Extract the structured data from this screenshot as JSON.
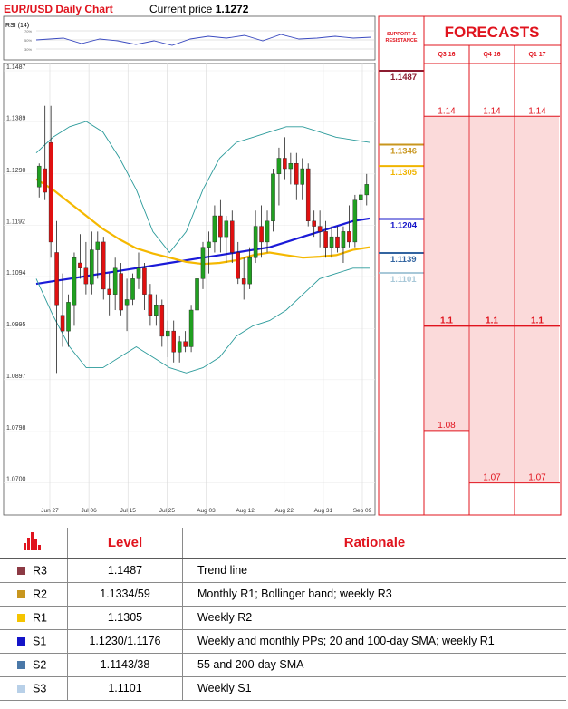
{
  "header": {
    "title": "EUR/USD Daily Chart",
    "price_label": "Current price",
    "price_value": "1.1272"
  },
  "rsi_label": "RSI (14)",
  "rsi_ticks": [
    "70%",
    "50%",
    "30%"
  ],
  "sr_heading": [
    "SUPPORT &",
    "RESISTANCE"
  ],
  "forecasts": {
    "title": "FORECASTS",
    "columns": [
      {
        "label": "Q3 16",
        "values": [
          1.14,
          1.1,
          1.08
        ]
      },
      {
        "label": "Q4 16",
        "values": [
          1.14,
          1.1,
          1.07
        ]
      },
      {
        "label": "Q1 17",
        "values": [
          1.14,
          1.1,
          1.07
        ]
      }
    ],
    "value_labels": {
      "q3_high": "1.14",
      "q4_high": "1.14",
      "q1_high": "1.14",
      "q3_mid": "1.1",
      "q4_mid": "1.1",
      "q1_mid": "1.1",
      "q3_low": "1.08",
      "q4_low": "1.07",
      "q1_low": "1.07"
    }
  },
  "levels": [
    {
      "value": 1.1487,
      "label": "1.1487",
      "color": "#8c1c30"
    },
    {
      "value": 1.1346,
      "label": "1.1346",
      "color": "#c8961e"
    },
    {
      "value": 1.1305,
      "label": "1.1305",
      "color": "#f0b400"
    },
    {
      "value": 1.1204,
      "label": "1.1204",
      "color": "#1414c8"
    },
    {
      "value": 1.1139,
      "label": "1.1139",
      "color": "#3264a0"
    },
    {
      "value": 1.1101,
      "label": "1.1101",
      "color": "#a8c8d8"
    }
  ],
  "chart_data": {
    "type": "candlestick",
    "title": "EUR/USD Daily Chart",
    "ylim": [
      1.067,
      1.1487
    ],
    "y_ticks": [
      "1.1487",
      "1.1389",
      "1.1290",
      "1.1192",
      "1.1094",
      "1.0995",
      "1.0897",
      "1.0798",
      "1.0700"
    ],
    "x_ticks": [
      "Jun 27",
      "Jul 06",
      "Jul 15",
      "Jul 25",
      "Aug 03",
      "Aug 12",
      "Aug 22",
      "Aug 31",
      "Sep 09"
    ],
    "candles": [
      [
        1.1265,
        1.131,
        1.1245,
        1.1305
      ],
      [
        1.13,
        1.142,
        1.124,
        1.1255
      ],
      [
        1.135,
        1.142,
        1.113,
        1.116
      ],
      [
        1.114,
        1.12,
        1.091,
        1.104
      ],
      [
        1.102,
        1.11,
        1.096,
        1.099
      ],
      [
        1.099,
        1.106,
        1.096,
        1.1045
      ],
      [
        1.104,
        1.114,
        1.1,
        1.113
      ],
      [
        1.112,
        1.1175,
        1.109,
        1.111
      ],
      [
        1.111,
        1.116,
        1.106,
        1.108
      ],
      [
        1.108,
        1.118,
        1.106,
        1.1145
      ],
      [
        1.1145,
        1.118,
        1.109,
        1.116
      ],
      [
        1.116,
        1.117,
        1.105,
        1.107
      ],
      [
        1.107,
        1.11,
        1.102,
        1.106
      ],
      [
        1.106,
        1.113,
        1.103,
        1.111
      ],
      [
        1.11,
        1.112,
        1.102,
        1.103
      ],
      [
        1.104,
        1.109,
        1.099,
        1.105
      ],
      [
        1.105,
        1.11,
        1.104,
        1.109
      ],
      [
        1.109,
        1.114,
        1.107,
        1.111
      ],
      [
        1.111,
        1.112,
        1.103,
        1.106
      ],
      [
        1.106,
        1.108,
        1.1,
        1.102
      ],
      [
        1.102,
        1.106,
        1.1,
        1.104
      ],
      [
        1.104,
        1.105,
        1.096,
        1.098
      ],
      [
        1.098,
        1.101,
        1.094,
        1.099
      ],
      [
        1.099,
        1.101,
        1.093,
        1.095
      ],
      [
        1.095,
        1.098,
        1.093,
        1.097
      ],
      [
        1.097,
        1.099,
        1.095,
        1.096
      ],
      [
        1.096,
        1.104,
        1.095,
        1.103
      ],
      [
        1.103,
        1.11,
        1.101,
        1.109
      ],
      [
        1.109,
        1.116,
        1.107,
        1.115
      ],
      [
        1.115,
        1.118,
        1.11,
        1.116
      ],
      [
        1.116,
        1.123,
        1.114,
        1.121
      ],
      [
        1.121,
        1.124,
        1.114,
        1.117
      ],
      [
        1.117,
        1.121,
        1.112,
        1.12
      ],
      [
        1.12,
        1.122,
        1.112,
        1.114
      ],
      [
        1.114,
        1.116,
        1.108,
        1.109
      ],
      [
        1.109,
        1.113,
        1.105,
        1.108
      ],
      [
        1.108,
        1.115,
        1.107,
        1.113
      ],
      [
        1.113,
        1.122,
        1.112,
        1.119
      ],
      [
        1.119,
        1.123,
        1.113,
        1.116
      ],
      [
        1.116,
        1.122,
        1.114,
        1.12
      ],
      [
        1.12,
        1.13,
        1.118,
        1.129
      ],
      [
        1.129,
        1.134,
        1.123,
        1.132
      ],
      [
        1.132,
        1.136,
        1.128,
        1.13
      ],
      [
        1.13,
        1.133,
        1.127,
        1.131
      ],
      [
        1.131,
        1.133,
        1.124,
        1.127
      ],
      [
        1.127,
        1.132,
        1.124,
        1.13
      ],
      [
        1.13,
        1.131,
        1.119,
        1.12
      ],
      [
        1.12,
        1.122,
        1.117,
        1.119
      ],
      [
        1.119,
        1.122,
        1.115,
        1.118
      ],
      [
        1.118,
        1.12,
        1.113,
        1.115
      ],
      [
        1.115,
        1.119,
        1.113,
        1.117
      ],
      [
        1.117,
        1.119,
        1.114,
        1.115
      ],
      [
        1.115,
        1.119,
        1.112,
        1.118
      ],
      [
        1.118,
        1.123,
        1.115,
        1.116
      ],
      [
        1.116,
        1.125,
        1.115,
        1.124
      ],
      [
        1.124,
        1.126,
        1.122,
        1.125
      ],
      [
        1.125,
        1.129,
        1.123,
        1.127
      ]
    ],
    "series": [
      {
        "color": "#1a1ad8",
        "values": [
          1.108,
          1.1085,
          1.109,
          1.1095,
          1.11,
          1.1105,
          1.111,
          1.1115,
          1.112,
          1.1125,
          1.113,
          1.1135,
          1.114,
          1.1145,
          1.115,
          1.116,
          1.117,
          1.118,
          1.119,
          1.12,
          1.1205
        ]
      },
      {
        "color": "#f5b800",
        "values": [
          1.128,
          1.126,
          1.1235,
          1.121,
          1.1185,
          1.1165,
          1.1148,
          1.1138,
          1.113,
          1.1122,
          1.1118,
          1.112,
          1.1125,
          1.1135,
          1.114,
          1.1135,
          1.113,
          1.1132,
          1.1135,
          1.1145,
          1.115
        ]
      },
      {
        "color": "#2a9a9a",
        "values": [
          1.133,
          1.136,
          1.138,
          1.139,
          1.137,
          1.132,
          1.126,
          1.118,
          1.114,
          1.118,
          1.126,
          1.132,
          1.135,
          1.136,
          1.137,
          1.138,
          1.138,
          1.137,
          1.136,
          1.1355,
          1.135
        ]
      },
      {
        "color": "#2a9a9a",
        "values": [
          1.109,
          1.102,
          1.096,
          1.092,
          1.092,
          1.094,
          1.096,
          1.094,
          1.092,
          1.091,
          1.092,
          1.094,
          1.098,
          1.1,
          1.101,
          1.103,
          1.106,
          1.109,
          1.11,
          1.111,
          1.111
        ]
      }
    ]
  },
  "table": {
    "headers": {
      "level": "Level",
      "rationale": "Rationale"
    },
    "rows": [
      {
        "name": "R3",
        "color": "#8c3a44",
        "level": "1.1487",
        "rationale": "Trend line"
      },
      {
        "name": "R2",
        "color": "#c8961e",
        "level": "1.1334/59",
        "rationale": "Monthly R1; Bollinger band; weekly R3"
      },
      {
        "name": "R1",
        "color": "#f5c400",
        "level": "1.1305",
        "rationale": "Weekly R2"
      },
      {
        "name": "S1",
        "color": "#1414c8",
        "level": "1.1230/1.1176",
        "rationale": "Weekly and monthly PPs; 20 and 100-day SMA; weekly R1"
      },
      {
        "name": "S2",
        "color": "#4a78a8",
        "level": "1.1143/38",
        "rationale": "55 and 200-day SMA"
      },
      {
        "name": "S3",
        "color": "#b8d0e8",
        "level": "1.1101",
        "rationale": "Weekly S1"
      }
    ]
  }
}
